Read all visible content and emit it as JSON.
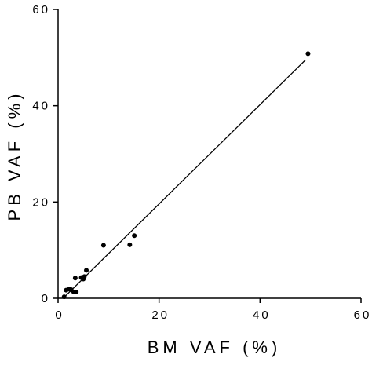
{
  "chart_data": {
    "type": "scatter",
    "title": "",
    "xlabel": "BM VAF (%)",
    "ylabel": "PB VAF (%)",
    "xlim": [
      0,
      60
    ],
    "ylim": [
      0,
      60
    ],
    "xticks": [
      0,
      20,
      40,
      60
    ],
    "yticks": [
      0,
      20,
      40,
      60
    ],
    "xtick_labels": [
      "0",
      "20",
      "40",
      "60"
    ],
    "ytick_labels": [
      "0",
      "20",
      "40",
      "60"
    ],
    "grid": false,
    "legend": false,
    "marker_color": "#000000",
    "line_color": "#000000",
    "points": [
      {
        "x": 1.2,
        "y": 0.3
      },
      {
        "x": 1.6,
        "y": 1.7
      },
      {
        "x": 2.2,
        "y": 1.9
      },
      {
        "x": 2.6,
        "y": 1.8
      },
      {
        "x": 3.1,
        "y": 1.3
      },
      {
        "x": 3.4,
        "y": 4.2
      },
      {
        "x": 3.6,
        "y": 1.3
      },
      {
        "x": 4.6,
        "y": 4.3
      },
      {
        "x": 5.0,
        "y": 4.0
      },
      {
        "x": 5.2,
        "y": 4.5
      },
      {
        "x": 5.6,
        "y": 5.8
      },
      {
        "x": 9.0,
        "y": 11.0
      },
      {
        "x": 14.2,
        "y": 11.1
      },
      {
        "x": 15.1,
        "y": 13.0
      },
      {
        "x": 49.5,
        "y": 50.8
      }
    ],
    "fit_line": {
      "x": [
        1.0,
        49.0
      ],
      "y": [
        0.0,
        49.5
      ]
    }
  }
}
